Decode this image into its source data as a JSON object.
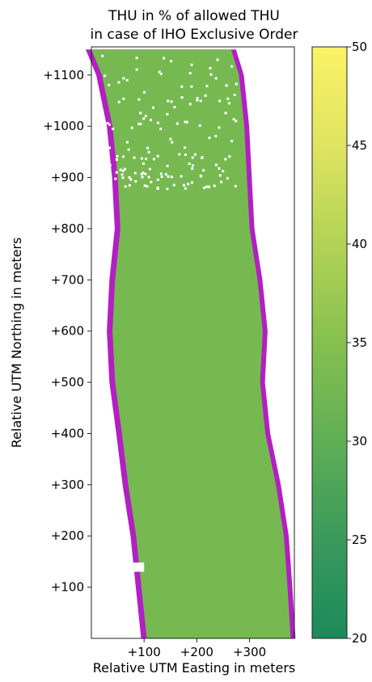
{
  "chart_data": {
    "type": "heatmap",
    "title": "THU in % of allowed THU",
    "subtitle": "in case of IHO Exclusive Order",
    "xlabel": "Relative UTM Easting in meters",
    "ylabel": "Relative UTM Northing in meters",
    "xlim": [
      0,
      385
    ],
    "ylim": [
      0,
      1155
    ],
    "x_ticks": [
      {
        "value": 100,
        "label": "+100"
      },
      {
        "value": 200,
        "label": "+200"
      },
      {
        "value": 300,
        "label": "+300"
      }
    ],
    "y_ticks": [
      {
        "value": 100,
        "label": "+100"
      },
      {
        "value": 200,
        "label": "+200"
      },
      {
        "value": 300,
        "label": "+300"
      },
      {
        "value": 400,
        "label": "+400"
      },
      {
        "value": 500,
        "label": "+500"
      },
      {
        "value": 600,
        "label": "+600"
      },
      {
        "value": 700,
        "label": "+700"
      },
      {
        "value": 800,
        "label": "+800"
      },
      {
        "value": 900,
        "label": "+900"
      },
      {
        "value": 1000,
        "label": "+1000"
      },
      {
        "value": 1100,
        "label": "+1100"
      }
    ],
    "colorbar": {
      "range": [
        20,
        50
      ],
      "ticks": [
        {
          "value": 20,
          "label": "20"
        },
        {
          "value": 25,
          "label": "25"
        },
        {
          "value": 30,
          "label": "30"
        },
        {
          "value": 35,
          "label": "35"
        },
        {
          "value": 40,
          "label": "40"
        },
        {
          "value": 45,
          "label": "45"
        },
        {
          "value": 50,
          "label": "50"
        }
      ],
      "colors": [
        "#1b8a5a",
        "#3a9a5c",
        "#5fae55",
        "#86c04f",
        "#b2d355",
        "#dfe461",
        "#fbf266"
      ]
    },
    "typical_value": 33,
    "out_of_spec_color": "#b21fc2",
    "grid": false,
    "survey_strip": {
      "northing": [
        0,
        100,
        200,
        300,
        400,
        500,
        600,
        700,
        800,
        900,
        1000,
        1100,
        1150
      ],
      "west_easting": [
        105,
        95,
        85,
        70,
        58,
        45,
        40,
        45,
        55,
        50,
        40,
        20,
        0
      ],
      "east_easting": [
        378,
        372,
        365,
        350,
        330,
        320,
        325,
        315,
        300,
        295,
        290,
        280,
        265
      ]
    },
    "no_data_patches": [
      {
        "easting": [
          72,
          100
        ],
        "northing": [
          130,
          148
        ]
      },
      {
        "easting": [
          56,
          64
        ],
        "northing": [
          150,
          156
        ]
      }
    ]
  }
}
